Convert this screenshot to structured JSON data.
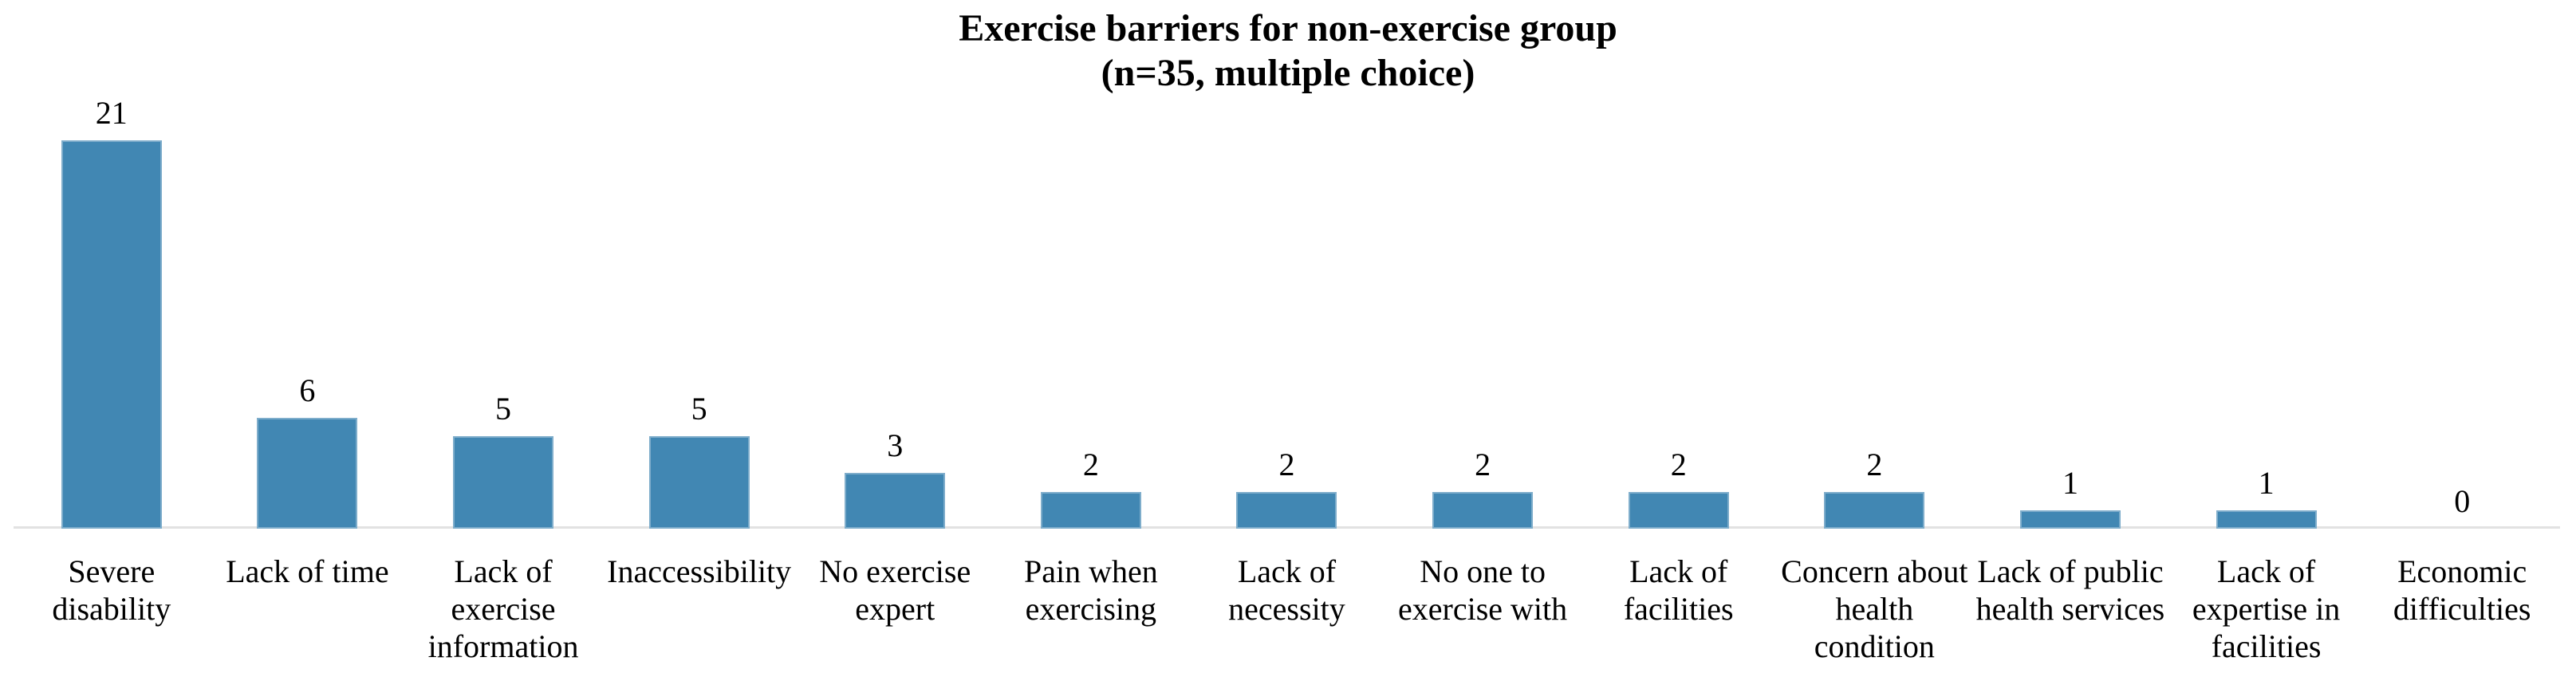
{
  "title": {
    "line1": "Exercise barriers for non-exercise group",
    "line2": "(n=35, multiple choice)"
  },
  "chart_data": {
    "type": "bar",
    "title": "Exercise barriers for non-exercise group",
    "subtitle": "(n=35, multiple choice)",
    "categories": [
      "Severe disability",
      "Lack of time",
      "Lack of exercise information",
      "Inaccessibility",
      "No exercise expert",
      "Pain when exercising",
      "Lack of necessity",
      "No one to exercise with",
      "Lack of facilities",
      "Concern about health condition",
      "Lack of public health services",
      "Lack of expertise in facilities",
      "Economic difficulties"
    ],
    "categories_wrapped": [
      "Severe\ndisability",
      "Lack of time",
      "Lack of\nexercise\ninformation",
      "Inaccessibility",
      "No exercise\nexpert",
      "Pain when\nexercising",
      "Lack of\nnecessity",
      "No one to\nexercise with",
      "Lack of\nfacilities",
      "Concern about\nhealth\ncondition",
      "Lack of public\nhealth services",
      "Lack of\nexpertise in\nfacilities",
      "Economic\ndifficulties"
    ],
    "values": [
      21,
      6,
      5,
      5,
      3,
      2,
      2,
      2,
      2,
      2,
      1,
      1,
      0
    ],
    "data_labels_shown": true,
    "xlabel": "",
    "ylabel": "",
    "ylim": [
      0,
      22
    ],
    "grid": false,
    "legend": "none",
    "bar_color": "#4187b3",
    "axis_line_color": "#e2e2e2",
    "text_color": "#000000",
    "background": "#ffffff"
  }
}
